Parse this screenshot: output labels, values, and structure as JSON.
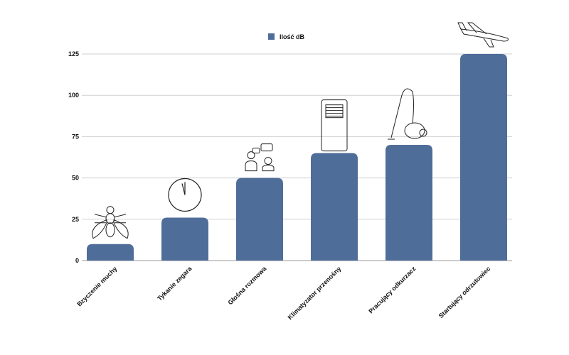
{
  "chart_data": {
    "type": "bar",
    "categories": [
      "Bzyczenie muchy",
      "Tykanie zegara",
      "Głośna rozmowa",
      "Klimatyzator przenośny",
      "Pracujący odkurzacz",
      "Startujący odrzutowiec"
    ],
    "series": [
      {
        "name": "Ilość dB",
        "values": [
          10,
          26,
          50,
          65,
          70,
          125
        ],
        "color": "#4f6d99"
      }
    ],
    "yticks": [
      0,
      25,
      50,
      75,
      100,
      125
    ],
    "ylim": [
      0,
      125
    ],
    "grid": true,
    "legend": "top-center",
    "icons": [
      "fly-icon",
      "clock-icon",
      "conversation-icon",
      "air-conditioner-icon",
      "vacuum-cleaner-icon",
      "airplane-icon"
    ]
  }
}
